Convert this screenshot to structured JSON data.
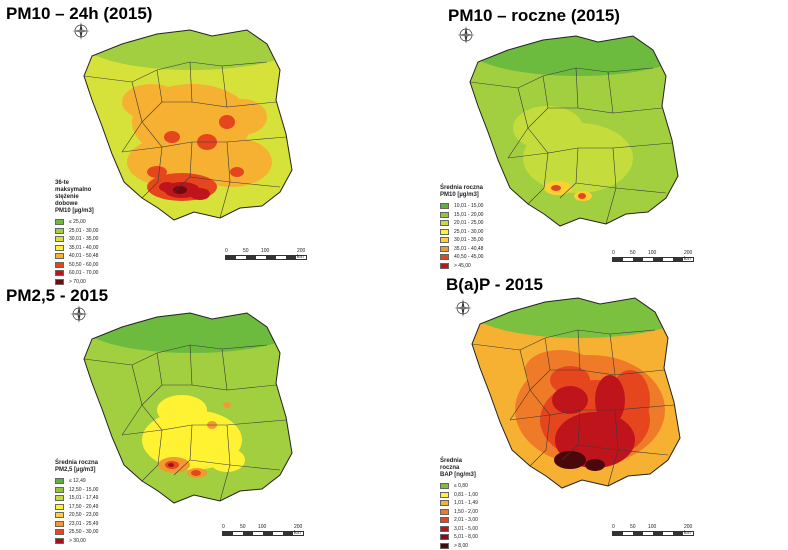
{
  "panels": [
    {
      "title": "PM10 – 24h (2015)",
      "legend_title": "36-te maksymalno\nstężenie dobowe\nPM10 [µg/m3]",
      "legend": [
        {
          "label": "≤ 25,00",
          "color": "#6cba3e"
        },
        {
          "label": "25,01 - 30,00",
          "color": "#a2cf3f"
        },
        {
          "label": "30,01 - 35,00",
          "color": "#d6e23a"
        },
        {
          "label": "35,01 - 40,00",
          "color": "#fff233"
        },
        {
          "label": "40,01 - 50,48",
          "color": "#f6b032"
        },
        {
          "label": "50,50 - 60,00",
          "color": "#e6461e"
        },
        {
          "label": "60,01 - 70,00",
          "color": "#c0141c"
        },
        {
          "label": "> 70,00",
          "color": "#6e0a12"
        }
      ],
      "scale": [
        "0",
        "50",
        "100",
        "200 km"
      ],
      "compass": "N"
    },
    {
      "title": "PM10 – roczne (2015)",
      "legend_title": "Średnia roczna\nPM10 [µg/m3]",
      "legend": [
        {
          "label": "10,01 - 15,00",
          "color": "#5cb33c"
        },
        {
          "label": "15,01 - 20,00",
          "color": "#8fc63e"
        },
        {
          "label": "20,01 - 25,00",
          "color": "#c4dd3c"
        },
        {
          "label": "25,01 - 30,00",
          "color": "#fff233"
        },
        {
          "label": "30,01 - 35,00",
          "color": "#fbd134"
        },
        {
          "label": "35,01 - 40,48",
          "color": "#f29a31"
        },
        {
          "label": "40,50 - 45,00",
          "color": "#e6461e"
        },
        {
          "label": "> 45,00",
          "color": "#c0141c"
        }
      ],
      "scale": [
        "0",
        "50",
        "100",
        "200 km"
      ],
      "compass": "N"
    },
    {
      "title": "PM2,5 - 2015",
      "legend_title": "Średnia roczna\nPM2,5 [µg/m3]",
      "legend": [
        {
          "label": "≤ 12,49",
          "color": "#5cb33c"
        },
        {
          "label": "12,50 - 15,00",
          "color": "#8fc63e"
        },
        {
          "label": "15,01 - 17,49",
          "color": "#c4dd3c"
        },
        {
          "label": "17,50 - 20,49",
          "color": "#fff233"
        },
        {
          "label": "20,50 - 23,00",
          "color": "#fbd134"
        },
        {
          "label": "23,01 - 25,49",
          "color": "#f29a31"
        },
        {
          "label": "25,50 - 30,00",
          "color": "#e6461e"
        },
        {
          "label": "> 30,00",
          "color": "#a3121a"
        }
      ],
      "scale": [
        "0",
        "50",
        "100",
        "200 km"
      ],
      "compass": "N"
    },
    {
      "title": "B(a)P - 2015",
      "legend_title": "Średnia roczna\nBAP [ng/m3]",
      "legend": [
        {
          "label": "≤ 0,80",
          "color": "#7cc040"
        },
        {
          "label": "0,81 - 1,00",
          "color": "#fff233"
        },
        {
          "label": "1,01 - 1,49",
          "color": "#f6b032"
        },
        {
          "label": "1,50 - 2,00",
          "color": "#ef7a27"
        },
        {
          "label": "2,01 - 3,00",
          "color": "#e6461e"
        },
        {
          "label": "3,01 - 5,00",
          "color": "#c0141c"
        },
        {
          "label": "5,01 - 8,00",
          "color": "#8a0d15"
        },
        {
          "label": "> 8,00",
          "color": "#4a070c"
        }
      ],
      "scale": [
        "0",
        "50",
        "100",
        "200 km"
      ],
      "compass": "N"
    }
  ],
  "map_colors": {
    "pm10_24h": {
      "base": "#d6e23a",
      "north": "#a2cf3f",
      "mid": "#f6b032",
      "hot": "#e6461e",
      "very_hot": "#c0141c",
      "extreme": "#6e0a12"
    },
    "pm10_year": {
      "base": "#a2cf3f",
      "north": "#6cba3e",
      "mid": "#c4dd3c",
      "hot": "#fbd134",
      "very_hot": "#e6461e",
      "extreme": "#c0141c"
    },
    "pm25": {
      "base": "#a2cf3f",
      "north": "#6cba3e",
      "mid": "#fff233",
      "hot": "#f29a31",
      "very_hot": "#e6461e",
      "extreme": "#a3121a"
    },
    "bap": {
      "base": "#f6b032",
      "north": "#7cc040",
      "mid": "#ef7a27",
      "hot": "#e6461e",
      "very_hot": "#c0141c",
      "extreme": "#4a070c"
    }
  }
}
